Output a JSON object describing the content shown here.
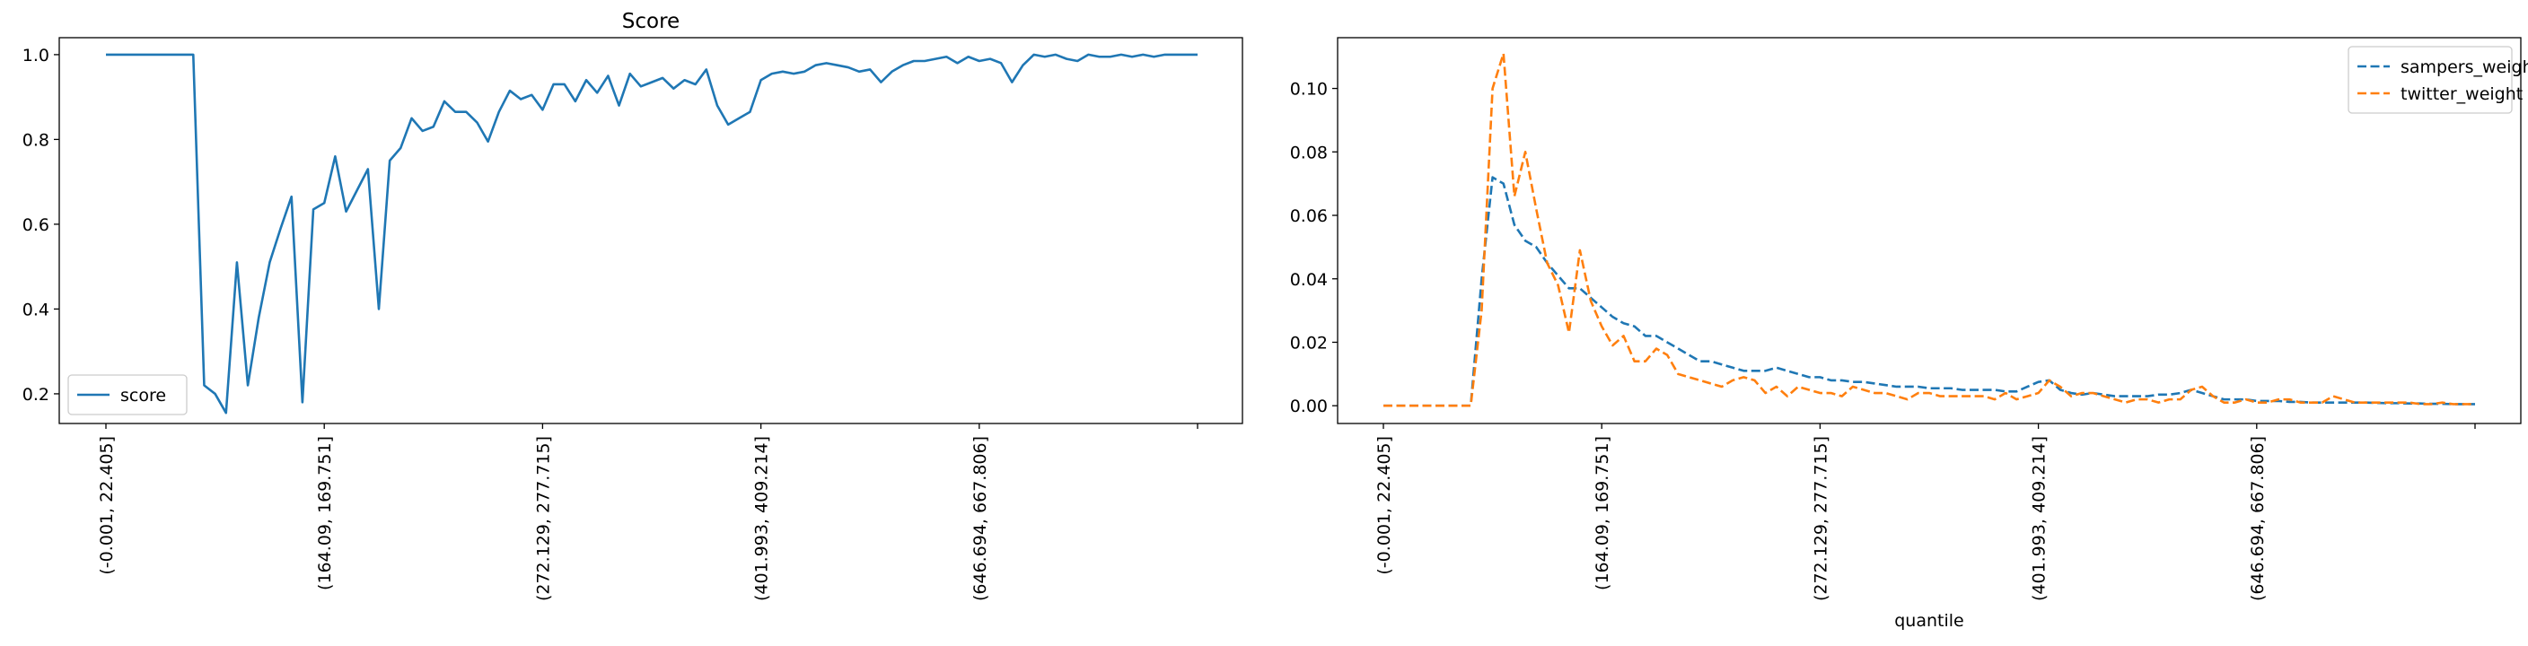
{
  "chart_data": [
    {
      "type": "line",
      "title": "Score",
      "xlabel": "",
      "ylabel": "",
      "ylim": [
        0.13,
        1.04
      ],
      "yticks": [
        "0.2",
        "0.4",
        "0.6",
        "0.8",
        "1.0"
      ],
      "ytick_values": [
        0.2,
        0.4,
        0.6,
        0.8,
        1.0
      ],
      "x_count": 101,
      "xticks": [
        "(-0.001, 22.405]",
        "(164.09, 169.751]",
        "(272.129, 277.715]",
        "(401.993, 409.214]",
        "(646.694, 667.806]",
        ""
      ],
      "xtick_index": [
        0,
        20,
        40,
        60,
        80,
        100
      ],
      "legend": "lower-left",
      "grid": false,
      "series": [
        {
          "name": "score",
          "color": "#1f77b4",
          "dash": "solid",
          "values": [
            1.0,
            1.0,
            1.0,
            1.0,
            1.0,
            1.0,
            1.0,
            1.0,
            1.0,
            0.22,
            0.2,
            0.155,
            0.51,
            0.22,
            0.38,
            0.51,
            0.59,
            0.665,
            0.18,
            0.635,
            0.65,
            0.76,
            0.63,
            0.68,
            0.73,
            0.4,
            0.75,
            0.78,
            0.85,
            0.82,
            0.83,
            0.89,
            0.865,
            0.865,
            0.84,
            0.795,
            0.865,
            0.915,
            0.895,
            0.905,
            0.87,
            0.93,
            0.93,
            0.89,
            0.94,
            0.91,
            0.95,
            0.88,
            0.955,
            0.925,
            0.935,
            0.945,
            0.92,
            0.94,
            0.93,
            0.965,
            0.88,
            0.835,
            0.85,
            0.865,
            0.94,
            0.955,
            0.96,
            0.955,
            0.96,
            0.975,
            0.98,
            0.975,
            0.97,
            0.96,
            0.965,
            0.935,
            0.96,
            0.975,
            0.985,
            0.985,
            0.99,
            0.995,
            0.98,
            0.995,
            0.985,
            0.99,
            0.98,
            0.935,
            0.975,
            1.0,
            0.995,
            1.0,
            0.99,
            0.985,
            1.0,
            0.995,
            0.995,
            1.0,
            0.995,
            1.0,
            0.995,
            1.0,
            1.0,
            1.0,
            1.0
          ]
        }
      ]
    },
    {
      "type": "line",
      "title": "",
      "xlabel": "quantile",
      "ylabel": "",
      "ylim": [
        -0.0056,
        0.116
      ],
      "yticks": [
        "0.00",
        "0.02",
        "0.04",
        "0.06",
        "0.08",
        "0.10"
      ],
      "ytick_values": [
        0.0,
        0.02,
        0.04,
        0.06,
        0.08,
        0.1
      ],
      "x_count": 101,
      "xticks": [
        "(-0.001, 22.405]",
        "(164.09, 169.751]",
        "(272.129, 277.715]",
        "(401.993, 409.214]",
        "(646.694, 667.806]",
        ""
      ],
      "xtick_index": [
        0,
        20,
        40,
        60,
        80,
        100
      ],
      "legend": "upper-right",
      "grid": false,
      "series": [
        {
          "name": "sampers_weight",
          "color": "#1f77b4",
          "dash": "dashed",
          "values": [
            0,
            0,
            0,
            0,
            0,
            0,
            0,
            0,
            0,
            0.04,
            0.072,
            0.07,
            0.057,
            0.052,
            0.05,
            0.045,
            0.041,
            0.037,
            0.037,
            0.034,
            0.031,
            0.028,
            0.026,
            0.025,
            0.022,
            0.022,
            0.02,
            0.018,
            0.016,
            0.014,
            0.014,
            0.013,
            0.012,
            0.011,
            0.011,
            0.011,
            0.012,
            0.011,
            0.01,
            0.009,
            0.009,
            0.008,
            0.008,
            0.0075,
            0.0075,
            0.007,
            0.0065,
            0.006,
            0.006,
            0.006,
            0.0055,
            0.0055,
            0.0055,
            0.005,
            0.005,
            0.005,
            0.005,
            0.0045,
            0.0045,
            0.006,
            0.0075,
            0.008,
            0.005,
            0.004,
            0.0035,
            0.004,
            0.0035,
            0.003,
            0.003,
            0.003,
            0.003,
            0.0035,
            0.0035,
            0.004,
            0.005,
            0.004,
            0.003,
            0.002,
            0.002,
            0.002,
            0.0015,
            0.0015,
            0.0015,
            0.0012,
            0.0012,
            0.001,
            0.001,
            0.001,
            0.001,
            0.001,
            0.001,
            0.0009,
            0.0008,
            0.0008,
            0.0007,
            0.0007,
            0.0006,
            0.0006,
            0.0005,
            0.0005,
            0.0005
          ]
        },
        {
          "name": "twitter_weight",
          "color": "#ff7f0e",
          "dash": "dashed",
          "values": [
            0,
            0,
            0,
            0,
            0,
            0,
            0,
            0,
            0,
            0.03,
            0.1,
            0.111,
            0.066,
            0.08,
            0.062,
            0.045,
            0.038,
            0.023,
            0.049,
            0.033,
            0.025,
            0.019,
            0.022,
            0.014,
            0.014,
            0.018,
            0.016,
            0.01,
            0.009,
            0.008,
            0.007,
            0.006,
            0.008,
            0.009,
            0.008,
            0.004,
            0.006,
            0.003,
            0.006,
            0.005,
            0.004,
            0.004,
            0.003,
            0.006,
            0.005,
            0.004,
            0.004,
            0.003,
            0.002,
            0.004,
            0.004,
            0.003,
            0.003,
            0.003,
            0.003,
            0.003,
            0.002,
            0.004,
            0.002,
            0.003,
            0.004,
            0.008,
            0.006,
            0.003,
            0.004,
            0.004,
            0.003,
            0.002,
            0.001,
            0.002,
            0.002,
            0.001,
            0.002,
            0.002,
            0.005,
            0.006,
            0.003,
            0.001,
            0.001,
            0.002,
            0.001,
            0.001,
            0.002,
            0.002,
            0.001,
            0.001,
            0.001,
            0.003,
            0.002,
            0.001,
            0.001,
            0.001,
            0.001,
            0.001,
            0.001,
            0.0005,
            0.0005,
            0.001,
            0.0005,
            0.0005,
            0.0005
          ]
        }
      ]
    }
  ]
}
